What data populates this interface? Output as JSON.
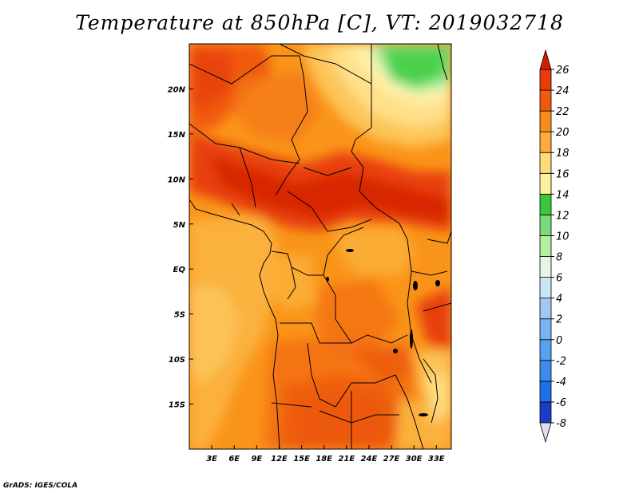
{
  "title": "Temperature at 850hPa [C], VT: 2019032718",
  "credit": "GrADS: IGES/COLA",
  "map": {
    "lon_range": [
      0,
      35
    ],
    "lat_range": [
      -20,
      25
    ],
    "lon_labels": [
      {
        "lon": 3,
        "text": "3E"
      },
      {
        "lon": 6,
        "text": "6E"
      },
      {
        "lon": 9,
        "text": "9E"
      },
      {
        "lon": 12,
        "text": "12E"
      },
      {
        "lon": 15,
        "text": "15E"
      },
      {
        "lon": 18,
        "text": "18E"
      },
      {
        "lon": 21,
        "text": "21E"
      },
      {
        "lon": 24,
        "text": "24E"
      },
      {
        "lon": 27,
        "text": "27E"
      },
      {
        "lon": 30,
        "text": "30E"
      },
      {
        "lon": 33,
        "text": "33E"
      }
    ],
    "lat_labels": [
      {
        "lat": 20,
        "text": "20N"
      },
      {
        "lat": 15,
        "text": "15N"
      },
      {
        "lat": 10,
        "text": "10N"
      },
      {
        "lat": 5,
        "text": "5N"
      },
      {
        "lat": 0,
        "text": "EQ"
      },
      {
        "lat": -5,
        "text": "5S"
      },
      {
        "lat": -10,
        "text": "10S"
      },
      {
        "lat": -15,
        "text": "15S"
      }
    ]
  },
  "colorbar": {
    "levels": [
      "-8",
      "-6",
      "-4",
      "-2",
      "0",
      "2",
      "4",
      "6",
      "8",
      "10",
      "12",
      "14",
      "16",
      "18",
      "20",
      "22",
      "24",
      "26"
    ],
    "colors": [
      "#1f1f8c",
      "#1e3cc8",
      "#1e6ee6",
      "#3c8cf0",
      "#5aa0f0",
      "#78b4f0",
      "#a0c8f0",
      "#c8e6f5",
      "#e6f5e6",
      "#b4f0a0",
      "#78dc78",
      "#3cc83c",
      "#fff0a0",
      "#ffdc78",
      "#ffaa3c",
      "#fa8c1e",
      "#f05a0a",
      "#e63c0a",
      "#d21e05"
    ],
    "low_arrow_color": "#dcdcf5",
    "high_arrow_color": "#d21e05"
  }
}
